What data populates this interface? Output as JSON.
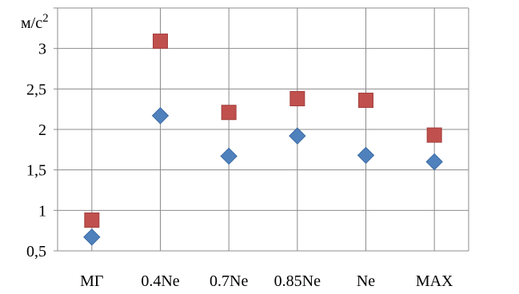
{
  "chart_data": {
    "type": "scatter",
    "unit_label": "м/с",
    "unit_exponent": "2",
    "categories": [
      "МГ",
      "0.4Ne",
      "0.7Ne",
      "0.85Ne",
      "Ne",
      "MAX"
    ],
    "y_ticks": [
      "0,5",
      "1",
      "1,5",
      "2",
      "2,5",
      "3"
    ],
    "y_tick_values": [
      0.5,
      1,
      1.5,
      2,
      2.5,
      3
    ],
    "ylim": [
      0.5,
      3.5
    ],
    "grid": true,
    "series": [
      {
        "marker": "diamond",
        "color": "#4F81BD",
        "values": [
          0.67,
          2.17,
          1.67,
          1.92,
          1.68,
          1.6
        ]
      },
      {
        "marker": "square",
        "color": "#C0504D",
        "values": [
          0.88,
          3.09,
          2.21,
          2.38,
          2.36,
          1.93
        ]
      }
    ]
  }
}
